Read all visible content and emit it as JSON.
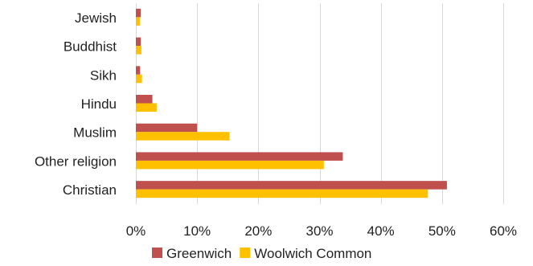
{
  "chart_data": {
    "type": "bar",
    "orientation": "horizontal",
    "categories": [
      "Jewish",
      "Buddhist",
      "Sikh",
      "Hindu",
      "Muslim",
      "Other religion",
      "Christian"
    ],
    "series": [
      {
        "name": "Greenwich",
        "values": [
          0.8,
          0.8,
          0.7,
          2.7,
          10.0,
          33.8,
          50.8
        ],
        "color": "#c0504d"
      },
      {
        "name": "Woolwich Common",
        "values": [
          0.7,
          0.9,
          1.0,
          3.4,
          15.3,
          30.7,
          47.7
        ],
        "color": "#ffc000"
      }
    ],
    "xlim": [
      0,
      60
    ],
    "xticks": [
      "0%",
      "10%",
      "20%",
      "30%",
      "40%",
      "50%",
      "60%"
    ],
    "grid": true,
    "legend_position": "bottom"
  }
}
